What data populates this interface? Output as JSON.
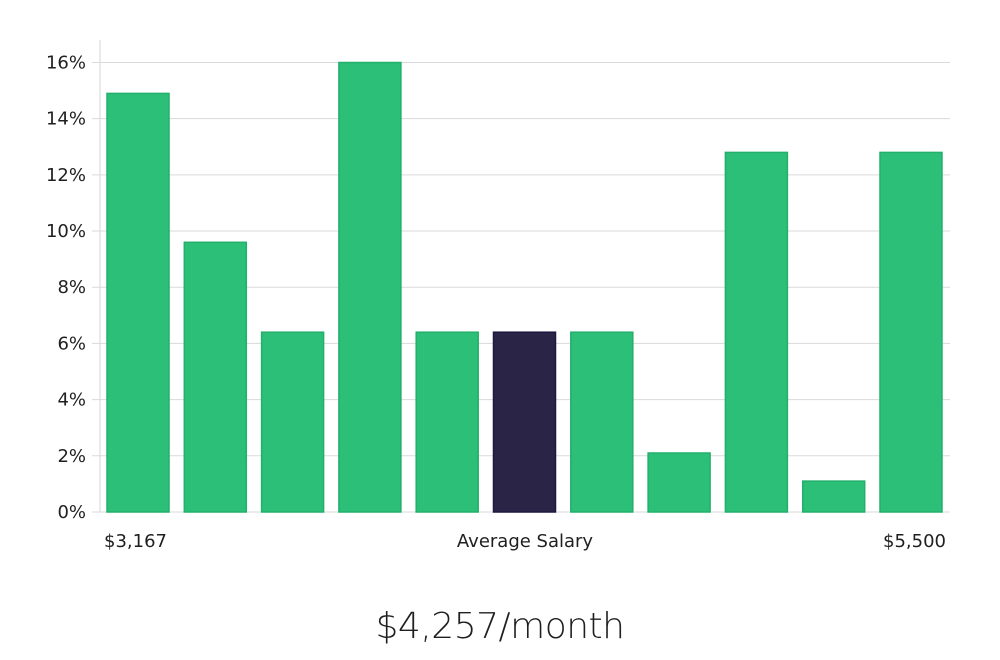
{
  "chart_data": {
    "type": "bar",
    "values": [
      14.9,
      9.6,
      6.4,
      16.0,
      6.4,
      6.4,
      6.4,
      2.1,
      12.8,
      1.1,
      12.8
    ],
    "highlight_index": 5,
    "ylim": [
      0,
      16.8
    ],
    "y_ticks": [
      "0%",
      "2%",
      "4%",
      "6%",
      "8%",
      "10%",
      "12%",
      "14%",
      "16%"
    ],
    "y_tick_values": [
      0,
      2,
      4,
      6,
      8,
      10,
      12,
      14,
      16
    ],
    "xlabel_left": "$3,167",
    "xlabel_center": "Average Salary",
    "xlabel_right": "$5,500",
    "grid": true,
    "colors": {
      "bar": "#2bbf78",
      "bar_edge": "#22b06c",
      "highlight": "#2a2547",
      "highlight_edge": "#1c1840"
    }
  },
  "headline": "$4,257/month"
}
